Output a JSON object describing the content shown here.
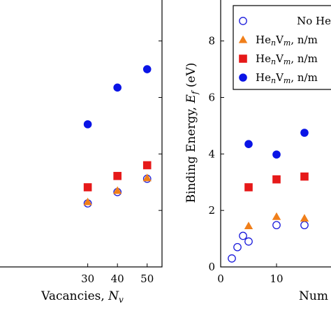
{
  "chart_data": [
    {
      "type": "scatter",
      "title": "",
      "xlabel": "Vacancies, N_v",
      "xlabel_parts": {
        "pre": "Vacancies, ",
        "var": "N",
        "sub": "v"
      },
      "ylabel": "",
      "xlim": [
        0,
        55
      ],
      "ylim": [
        0,
        9.5
      ],
      "xticks": [
        "30",
        "40",
        "50"
      ],
      "xtick_values": [
        30,
        40,
        50
      ],
      "grid": false,
      "series": [
        {
          "key": "nohe",
          "marker": "open-circle",
          "color": "#1a1adb",
          "points": [
            [
              30,
              2.25
            ],
            [
              40,
              2.65
            ],
            [
              50,
              3.12
            ]
          ]
        },
        {
          "key": "triangle",
          "marker": "triangle",
          "color": "#f07f1a",
          "points": [
            [
              30,
              2.3
            ],
            [
              40,
              2.7
            ],
            [
              50,
              3.15
            ]
          ]
        },
        {
          "key": "square",
          "marker": "square",
          "color": "#e61919",
          "points": [
            [
              30,
              2.82
            ],
            [
              40,
              3.22
            ],
            [
              50,
              3.6
            ]
          ]
        },
        {
          "key": "circle",
          "marker": "circle",
          "color": "#0a14e6",
          "points": [
            [
              30,
              5.05
            ],
            [
              40,
              6.35
            ],
            [
              50,
              7.0
            ]
          ]
        }
      ]
    },
    {
      "type": "scatter",
      "title": "",
      "xlabel": "Num",
      "ylabel": "Binding Energy, E_f (eV)",
      "ylabel_parts": {
        "pre": "Binding Energy, ",
        "var": "E",
        "sub": "f",
        "post": " (eV)"
      },
      "xlim": [
        0,
        20
      ],
      "ylim": [
        0,
        9.5
      ],
      "xticks": [
        "0",
        "10"
      ],
      "xtick_values": [
        0,
        10
      ],
      "yticks": [
        "0",
        "2",
        "4",
        "6",
        "8"
      ],
      "ytick_values": [
        0,
        2,
        4,
        6,
        8
      ],
      "grid": false,
      "legend": "top-right",
      "series": [
        {
          "key": "nohe",
          "name": "No He",
          "marker": "open-circle",
          "color": "#1a1adb",
          "points": [
            [
              2,
              0.3
            ],
            [
              3,
              0.7
            ],
            [
              4,
              1.1
            ],
            [
              5,
              0.9
            ],
            [
              10,
              1.48
            ],
            [
              15,
              1.48
            ]
          ]
        },
        {
          "key": "triangle",
          "name": "He_nV_m, n/m",
          "marker": "triangle",
          "color": "#f07f1a",
          "points": [
            [
              5,
              1.45
            ],
            [
              10,
              1.78
            ],
            [
              15,
              1.72
            ]
          ]
        },
        {
          "key": "square",
          "name": "He_nV_m, n/m",
          "marker": "square",
          "color": "#e61919",
          "points": [
            [
              5,
              2.82
            ],
            [
              10,
              3.1
            ],
            [
              15,
              3.2
            ]
          ]
        },
        {
          "key": "circle",
          "name": "He_nV_m, n/m",
          "marker": "circle",
          "color": "#0a14e6",
          "points": [
            [
              5,
              4.35
            ],
            [
              10,
              3.98
            ],
            [
              15,
              4.75
            ]
          ]
        }
      ],
      "legend_entries": [
        {
          "marker": "open-circle",
          "color": "#1a1adb",
          "text": "No He"
        },
        {
          "marker": "triangle",
          "color": "#f07f1a",
          "text_parts": {
            "a": "He",
            "n": "n",
            "b": "V",
            "m": "m",
            "c": ", n/m"
          }
        },
        {
          "marker": "square",
          "color": "#e61919",
          "text_parts": {
            "a": "He",
            "n": "n",
            "b": "V",
            "m": "m",
            "c": ", n/m"
          }
        },
        {
          "marker": "circle",
          "color": "#0a14e6",
          "text_parts": {
            "a": "He",
            "n": "n",
            "b": "V",
            "m": "m",
            "c": ", n/m"
          }
        }
      ]
    }
  ]
}
